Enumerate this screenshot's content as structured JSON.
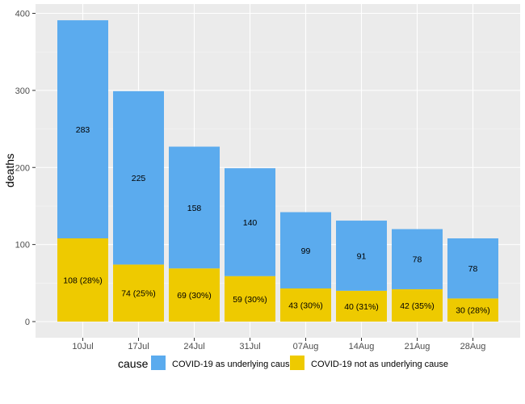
{
  "chart_data": {
    "type": "bar",
    "stacked": true,
    "title": "",
    "xlabel": "",
    "ylabel": "deaths",
    "ylim": [
      0,
      400
    ],
    "yticks": [
      0,
      100,
      200,
      300,
      400
    ],
    "grid": true,
    "categories": [
      "10Jul",
      "17Jul",
      "24Jul",
      "31Jul",
      "07Aug",
      "14Aug",
      "21Aug",
      "28Aug"
    ],
    "series": [
      {
        "name": "COVID-19 not as underlying cause",
        "color": "#EECA00",
        "values": [
          108,
          74,
          69,
          59,
          43,
          40,
          42,
          30
        ],
        "labels": [
          "108 (28%)",
          "74 (25%)",
          "69 (30%)",
          "59 (30%)",
          "43 (30%)",
          "40 (31%)",
          "42 (35%)",
          "30 (28%)"
        ]
      },
      {
        "name": "COVID-19 as underlying cause",
        "color": "#5BABEE",
        "values": [
          283,
          225,
          158,
          140,
          99,
          91,
          78,
          78
        ],
        "labels": [
          "283",
          "225",
          "158",
          "140",
          "99",
          "91",
          "78",
          "78"
        ]
      }
    ],
    "legend": {
      "title": "cause",
      "position": "bottom"
    }
  }
}
